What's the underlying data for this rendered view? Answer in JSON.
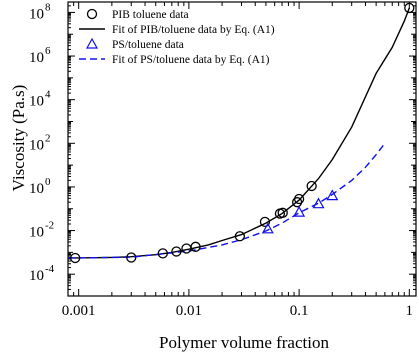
{
  "chart_data": {
    "type": "scatter",
    "title": "",
    "xlabel": "Polymer volume fraction",
    "ylabel": "Viscosity  (Pa.s)",
    "x_scale": "log",
    "y_scale": "log",
    "xlim": [
      0.0008,
      1.15
    ],
    "ylim": [
      1e-05,
      300000000
    ],
    "grid": false,
    "legend_position": "top-left",
    "x_ticks": [
      {
        "value": 0.001,
        "label": "0.001"
      },
      {
        "value": 0.01,
        "label": "0.01"
      },
      {
        "value": 0.1,
        "label": "0.1"
      },
      {
        "value": 1,
        "label": "1"
      }
    ],
    "y_ticks": [
      {
        "value": 0.0001,
        "base": "10",
        "exp": "-4"
      },
      {
        "value": 0.01,
        "base": "10",
        "exp": "-2"
      },
      {
        "value": 1,
        "base": "10",
        "exp": "0"
      },
      {
        "value": 100,
        "base": "10",
        "exp": "2"
      },
      {
        "value": 10000,
        "base": "10",
        "exp": "4"
      },
      {
        "value": 1000000,
        "base": "10",
        "exp": "6"
      },
      {
        "value": 100000000,
        "base": "10",
        "exp": "8"
      }
    ],
    "series": [
      {
        "name": "PIB toluene data",
        "kind": "marker",
        "marker": "circle",
        "color": "#000000",
        "x": [
          0.00093,
          0.003,
          0.0058,
          0.0077,
          0.0095,
          0.0115,
          0.029,
          0.049,
          0.067,
          0.071,
          0.096,
          0.1,
          0.13,
          1.0
        ],
        "y": [
          0.00055,
          0.00058,
          0.0009,
          0.0011,
          0.0015,
          0.0018,
          0.0055,
          0.025,
          0.06,
          0.065,
          0.2,
          0.28,
          1.1,
          160000000
        ]
      },
      {
        "name": "Fit of PIB/toluene data by Eq. (A1)",
        "kind": "line",
        "dash": "solid",
        "color": "#000000",
        "x": [
          0.0008,
          0.001,
          0.002,
          0.003,
          0.005,
          0.007,
          0.01,
          0.015,
          0.02,
          0.03,
          0.05,
          0.07,
          0.1,
          0.15,
          0.2,
          0.3,
          0.5,
          0.7,
          0.9,
          1.0
        ],
        "y": [
          0.00056,
          0.00056,
          0.00059,
          0.00063,
          0.00078,
          0.001,
          0.0014,
          0.0022,
          0.0035,
          0.0065,
          0.022,
          0.06,
          0.25,
          2.4,
          18,
          550,
          160000,
          2500000,
          40000000,
          160000000
        ]
      },
      {
        "name": "PS/toluene data",
        "kind": "marker",
        "marker": "triangle",
        "color": "#1010ee",
        "x": [
          0.052,
          0.1,
          0.15,
          0.2
        ],
        "y": [
          0.012,
          0.07,
          0.17,
          0.4
        ]
      },
      {
        "name": "Fit of PS/toluene data by Eq. (A1)",
        "kind": "line",
        "dash": "dashed",
        "color": "#1010ee",
        "x": [
          0.0008,
          0.001,
          0.003,
          0.01,
          0.02,
          0.03,
          0.05,
          0.07,
          0.1,
          0.15,
          0.2,
          0.3,
          0.4,
          0.5,
          0.6
        ],
        "y": [
          0.00056,
          0.00056,
          0.0006,
          0.00115,
          0.0022,
          0.0038,
          0.0095,
          0.022,
          0.065,
          0.18,
          0.45,
          2.0,
          8.0,
          30,
          100
        ]
      }
    ]
  }
}
